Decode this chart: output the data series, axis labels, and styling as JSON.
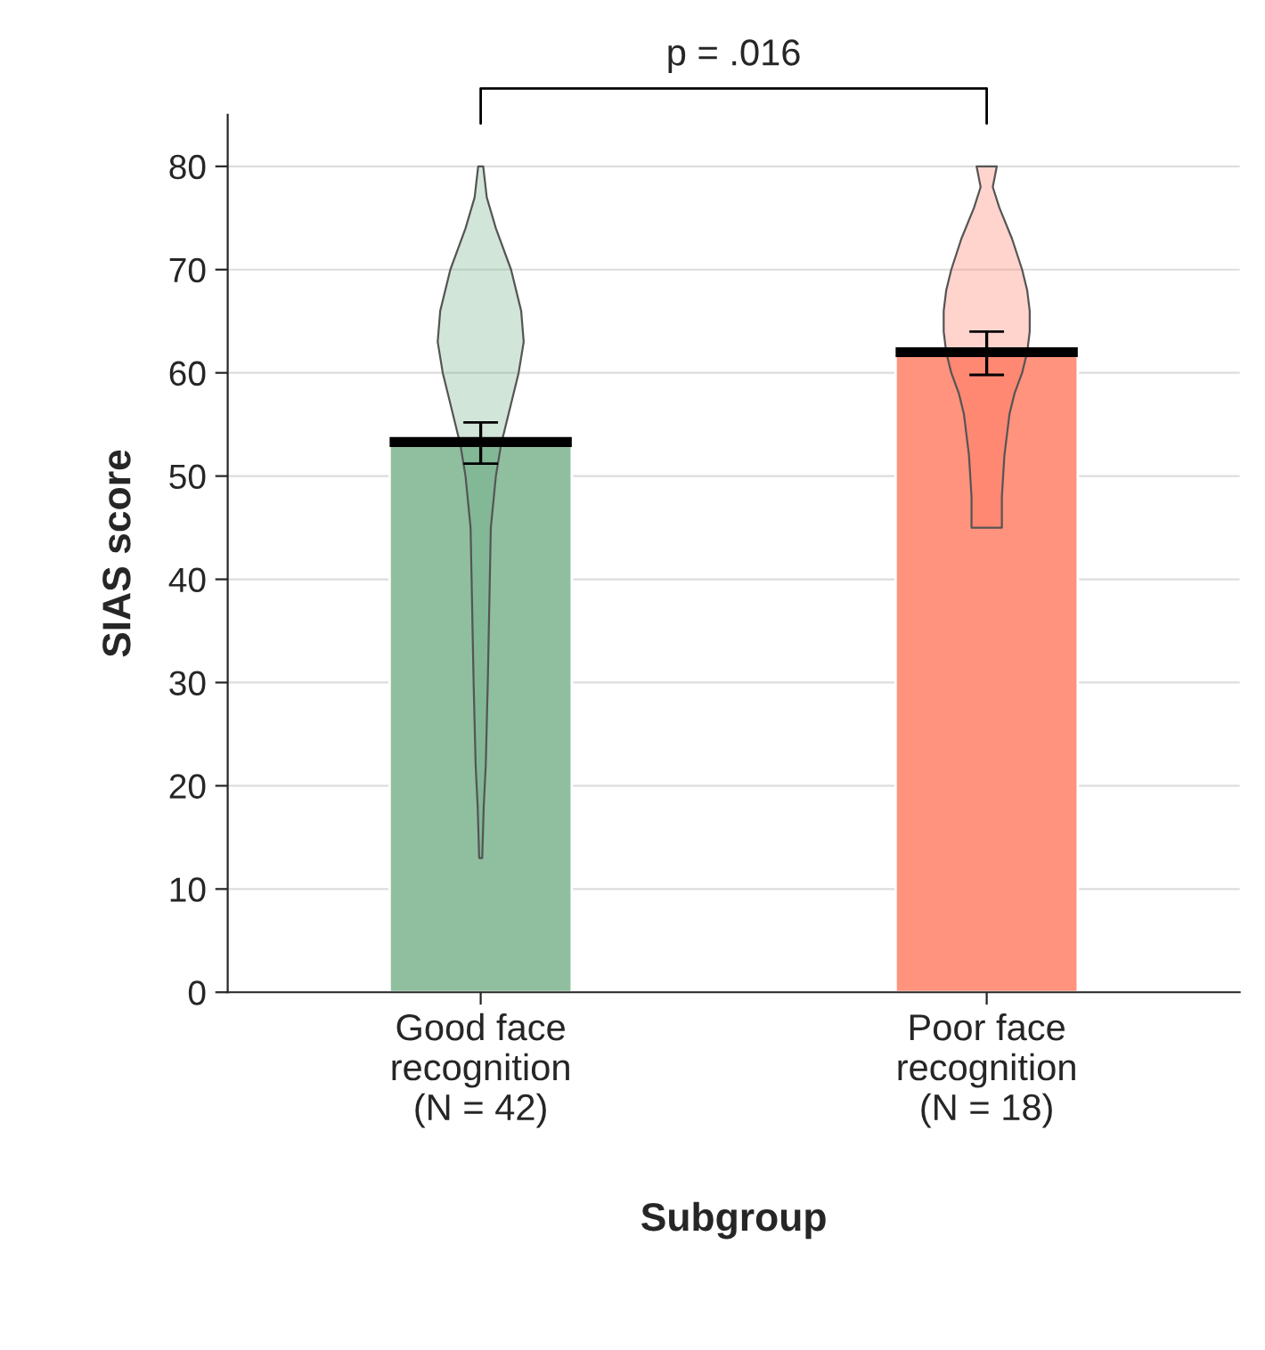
{
  "chart_data": {
    "type": "bar",
    "xlabel": "Subgroup",
    "ylabel": "SIAS score",
    "categories": [
      "Good face\nrecognition\n(N = 42)",
      "Poor face\nrecognition\n(N = 18)"
    ],
    "values": [
      53.3,
      62
    ],
    "colors": [
      "#8fbf9f",
      "#ff937e"
    ],
    "errors": [
      [
        51.2,
        55.2
      ],
      [
        59.8,
        64
      ]
    ],
    "ylim": [
      0,
      85
    ],
    "yticks": [
      0,
      10,
      20,
      30,
      40,
      50,
      60,
      70,
      80
    ],
    "grid": "y",
    "annotations": [
      "p = .016"
    ]
  }
}
